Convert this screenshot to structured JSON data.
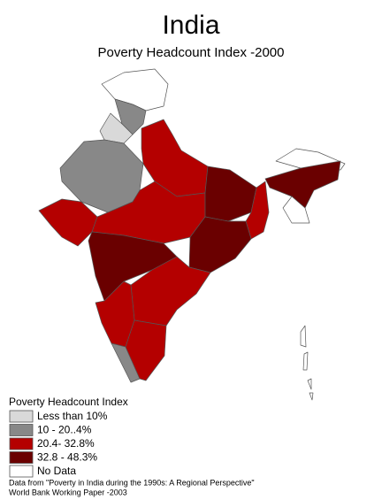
{
  "title": "India",
  "subtitle": "Poverty Headcount Index -2000",
  "legend": {
    "title": "Poverty Headcount Index",
    "items": [
      {
        "label": "Less than 10%",
        "color": "#d9d9d9"
      },
      {
        "label": "10 - 20..4%",
        "color": "#888888"
      },
      {
        "label": "20.4- 32.8%",
        "color": "#b40000"
      },
      {
        "label": "32.8 - 48.3%",
        "color": "#6a0000"
      },
      {
        "label": "No Data",
        "color": "#ffffff"
      }
    ]
  },
  "source": [
    "Data from \"Poverty in India during the 1990s: A Regional Perspective\"",
    "World Bank Working Paper -2003"
  ]
}
